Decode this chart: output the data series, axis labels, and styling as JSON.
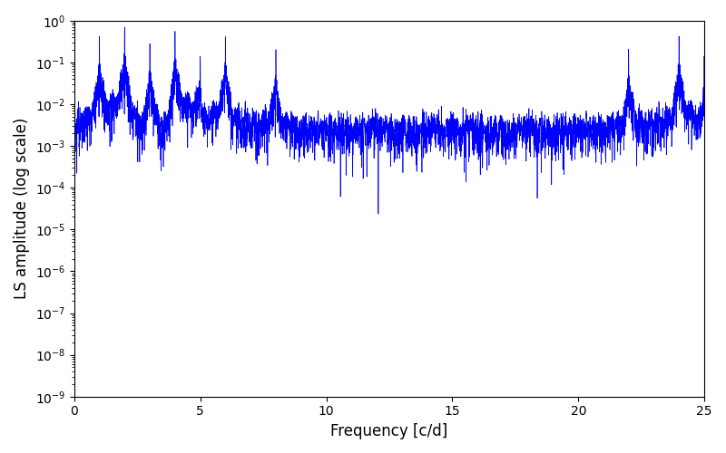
{
  "xlabel": "Frequency [c/d]",
  "ylabel": "LS amplitude (log scale)",
  "xlim": [
    0,
    25
  ],
  "ylim_log_min": -9,
  "ylim_log_max": 0,
  "line_color": "#0000ff",
  "line_width": 0.5,
  "background_color": "#ffffff",
  "figsize": [
    8.0,
    5.0
  ],
  "dpi": 100,
  "yscale": "log",
  "xticks": [
    0,
    5,
    10,
    15,
    20,
    25
  ],
  "seed": 12345,
  "n_points": 5000,
  "freq_max": 25.0
}
